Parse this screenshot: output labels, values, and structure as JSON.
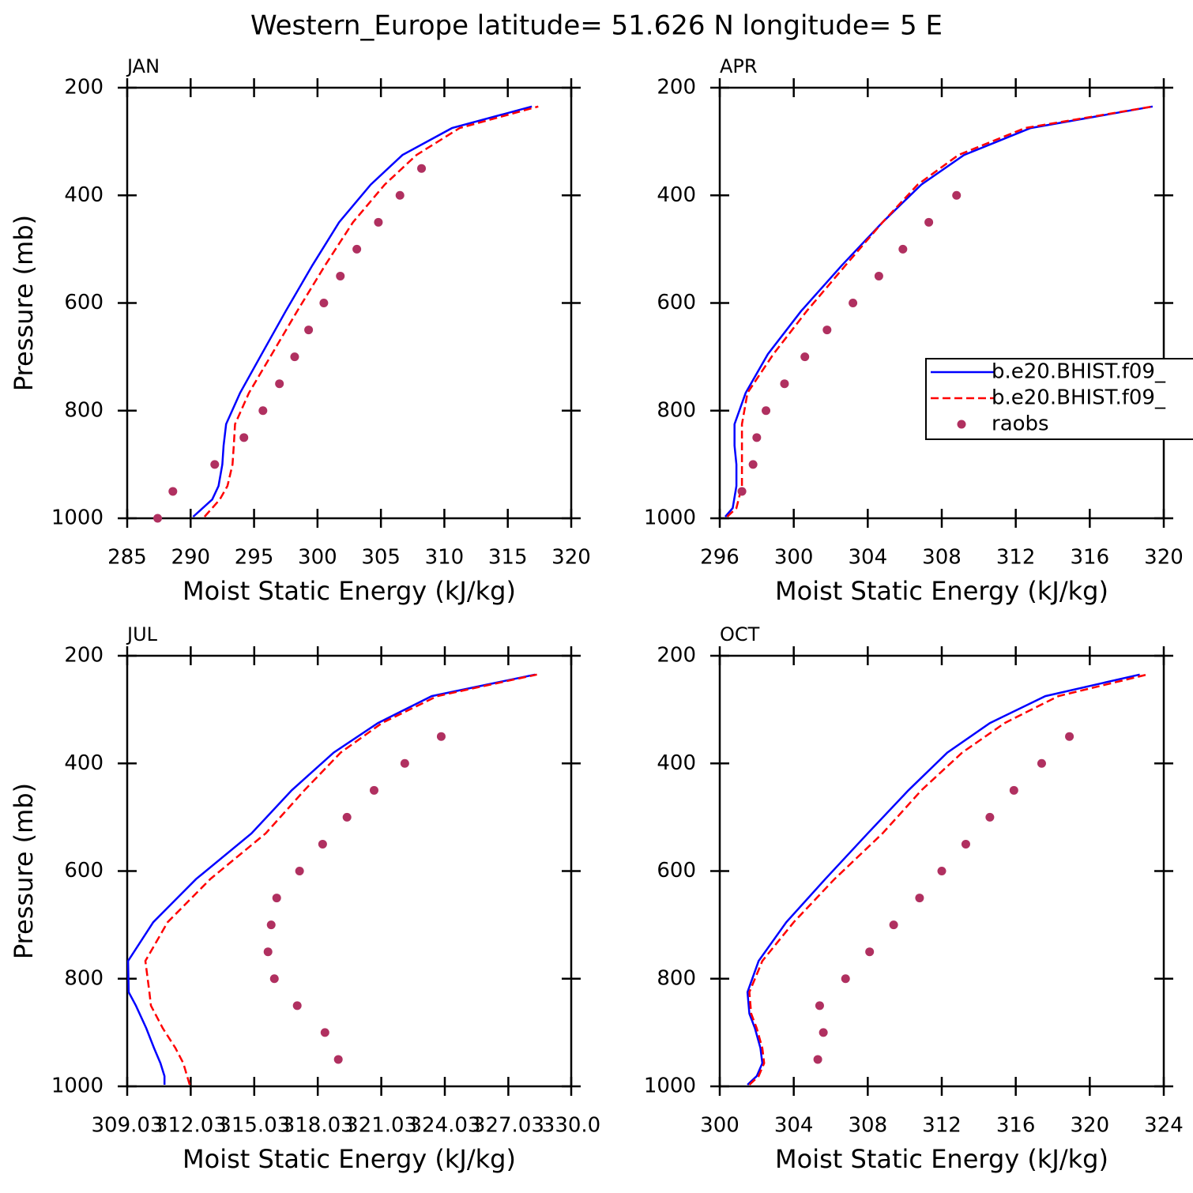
{
  "title": "Western_Europe  latitude= 51.626 N longitude= 5 E",
  "chart_data": [
    {
      "type": "line",
      "title": "JAN",
      "xlabel": "Moist Static Energy (kJ/kg)",
      "ylabel": "Pressure (mb)",
      "xlim": [
        285,
        320
      ],
      "xticks": [
        285,
        290,
        295,
        300,
        305,
        310,
        315,
        320
      ],
      "ylim": [
        1000,
        200
      ],
      "yticks": [
        200,
        400,
        600,
        800,
        1000
      ],
      "series": [
        {
          "name": "b.e20.BHIST.f09_",
          "color": "#0000ff",
          "style": "solid",
          "marker": "none",
          "x": [
            290.2,
            291.7,
            292.2,
            292.5,
            292.6,
            292.8,
            293.9,
            295.6,
            297.5,
            299.6,
            301.7,
            304.2,
            306.7,
            310.6,
            316.9
          ],
          "y": [
            997,
            965,
            940,
            900,
            865,
            825,
            767,
            695,
            615,
            530,
            450,
            380,
            325,
            275,
            235
          ]
        },
        {
          "name": "b.e20.BHIST.f09_",
          "color": "#ff0000",
          "style": "dashed",
          "marker": "none",
          "x": [
            291.1,
            292.3,
            292.9,
            293.3,
            293.4,
            293.5,
            294.6,
            296.4,
            298.4,
            300.6,
            302.8,
            305.3,
            307.8,
            311.2,
            317.4
          ],
          "y": [
            997,
            965,
            940,
            900,
            865,
            825,
            767,
            695,
            615,
            530,
            450,
            380,
            325,
            275,
            235
          ]
        },
        {
          "name": "raobs",
          "color": "#b03060",
          "style": "none",
          "marker": "dot",
          "x": [
            287.4,
            288.6,
            291.9,
            294.2,
            295.7,
            297.0,
            298.2,
            299.3,
            300.5,
            301.8,
            303.1,
            304.8,
            306.5,
            308.2
          ],
          "y": [
            1000,
            950,
            900,
            850,
            800,
            750,
            700,
            650,
            600,
            550,
            500,
            450,
            400,
            350
          ]
        }
      ]
    },
    {
      "type": "line",
      "title": "APR",
      "xlabel": "Moist Static Energy (kJ/kg)",
      "legend": "right",
      "xlim": [
        296,
        320
      ],
      "xticks": [
        296,
        300,
        304,
        308,
        312,
        316,
        320
      ],
      "ylim": [
        1000,
        200
      ],
      "yticks": [
        200,
        400,
        600,
        800,
        1000
      ],
      "series": [
        {
          "name": "b.e20.BHIST.f09_",
          "color": "#0000ff",
          "style": "solid",
          "marker": "none",
          "x": [
            296.3,
            296.7,
            296.9,
            296.9,
            296.8,
            296.8,
            297.4,
            298.6,
            300.4,
            302.6,
            304.8,
            306.9,
            309.2,
            312.8,
            319.4
          ],
          "y": [
            997,
            981,
            940,
            900,
            865,
            825,
            767,
            695,
            615,
            530,
            450,
            380,
            325,
            275,
            235
          ]
        },
        {
          "name": "b.e20.BHIST.f09_",
          "color": "#ff0000",
          "style": "dashed",
          "marker": "none",
          "x": [
            296.4,
            296.9,
            297.2,
            297.2,
            297.2,
            297.2,
            297.5,
            298.9,
            300.7,
            302.8,
            304.8,
            306.7,
            308.9,
            312.5,
            319.4
          ],
          "y": [
            997,
            981,
            940,
            900,
            865,
            825,
            767,
            695,
            615,
            530,
            450,
            380,
            325,
            275,
            235
          ]
        },
        {
          "name": "raobs",
          "color": "#b03060",
          "style": "none",
          "marker": "dot",
          "x": [
            297.2,
            297.8,
            298.0,
            298.5,
            299.5,
            300.6,
            301.8,
            303.2,
            304.6,
            305.9,
            307.3,
            308.8
          ],
          "y": [
            950,
            900,
            850,
            800,
            750,
            700,
            650,
            600,
            550,
            500,
            450,
            400
          ]
        }
      ]
    },
    {
      "type": "line",
      "title": "JUL",
      "xlabel": "Moist Static Energy (kJ/kg)",
      "ylabel": "Pressure (mb)",
      "xlim": [
        309.03,
        330
      ],
      "xticks": [
        309.03,
        312.03,
        315.03,
        318.03,
        321.03,
        324.03,
        327.03,
        {
          "value": 330,
          "label": "330.0"
        }
      ],
      "ylim": [
        1000,
        200
      ],
      "yticks": [
        200,
        400,
        600,
        800,
        1000
      ],
      "series": [
        {
          "name": "b.e20.BHIST.f09_",
          "color": "#0000ff",
          "style": "solid",
          "marker": "none",
          "x": [
            310.79,
            310.79,
            310.6,
            310.3,
            309.93,
            309.44,
            309.1,
            309.07,
            310.26,
            312.28,
            314.9,
            316.8,
            318.78,
            320.87,
            323.41,
            328.3
          ],
          "y": [
            997,
            981,
            957,
            929,
            892,
            850,
            825,
            767,
            695,
            615,
            530,
            450,
            380,
            325,
            275,
            235
          ]
        },
        {
          "name": "b.e20.BHIST.f09_",
          "color": "#ff0000",
          "style": "dashed",
          "marker": "none",
          "x": [
            311.98,
            311.68,
            311.31,
            310.71,
            310.15,
            310.08,
            309.89,
            310.94,
            312.95,
            315.57,
            317.4,
            319.11,
            321.06,
            323.67,
            328.38
          ],
          "y": [
            997,
            957,
            929,
            892,
            850,
            825,
            767,
            695,
            615,
            530,
            450,
            380,
            325,
            275,
            235
          ]
        },
        {
          "name": "raobs",
          "color": "#b03060",
          "style": "none",
          "marker": "dot",
          "x": [
            319.0,
            318.37,
            317.06,
            315.98,
            315.68,
            315.83,
            316.09,
            317.17,
            318.26,
            319.41,
            320.69,
            322.14,
            323.86
          ],
          "y": [
            950,
            900,
            850,
            800,
            750,
            700,
            650,
            600,
            550,
            500,
            450,
            400,
            350
          ]
        }
      ]
    },
    {
      "type": "line",
      "title": "OCT",
      "xlabel": "Moist Static Energy (kJ/kg)",
      "xlim": [
        300,
        324
      ],
      "xticks": [
        300,
        304,
        308,
        312,
        316,
        320,
        324
      ],
      "ylim": [
        1000,
        200
      ],
      "yticks": [
        200,
        400,
        600,
        800,
        1000
      ],
      "series": [
        {
          "name": "b.e20.BHIST.f09_",
          "color": "#0000ff",
          "style": "solid",
          "marker": "none",
          "x": [
            301.5,
            302.0,
            302.3,
            302.2,
            301.9,
            301.6,
            301.5,
            302.1,
            303.6,
            305.7,
            308.0,
            310.2,
            312.3,
            314.6,
            317.6,
            322.7
          ],
          "y": [
            997,
            981,
            957,
            929,
            892,
            865,
            825,
            767,
            695,
            615,
            530,
            450,
            380,
            325,
            275,
            235
          ]
        },
        {
          "name": "b.e20.BHIST.f09_",
          "color": "#ff0000",
          "style": "dashed",
          "marker": "none",
          "x": [
            301.6,
            302.1,
            302.4,
            302.3,
            302.0,
            301.7,
            301.6,
            302.3,
            304.0,
            306.2,
            308.8,
            310.9,
            313.1,
            315.4,
            318.3,
            323.1
          ],
          "y": [
            997,
            981,
            957,
            929,
            892,
            865,
            825,
            767,
            695,
            615,
            530,
            450,
            380,
            325,
            275,
            235
          ]
        },
        {
          "name": "raobs",
          "color": "#b03060",
          "style": "none",
          "marker": "dot",
          "x": [
            305.3,
            305.6,
            305.4,
            306.8,
            308.1,
            309.4,
            310.8,
            312.0,
            313.3,
            314.6,
            315.9,
            317.4,
            318.9
          ],
          "y": [
            950,
            900,
            850,
            800,
            750,
            700,
            650,
            600,
            550,
            500,
            450,
            400,
            350
          ]
        }
      ]
    }
  ]
}
